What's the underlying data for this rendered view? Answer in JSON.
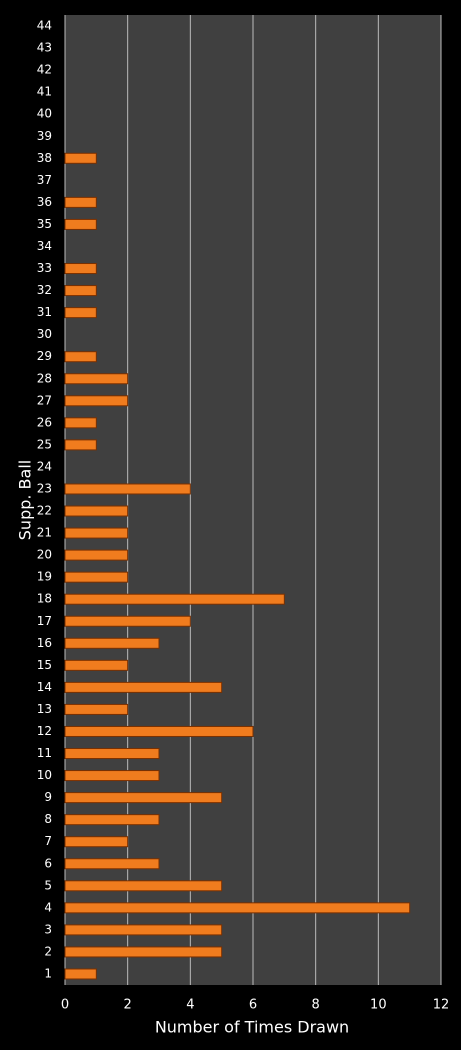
{
  "chart_data": {
    "type": "bar",
    "orientation": "horizontal",
    "x_label": "Number of Times Drawn",
    "y_label": "Supp. Ball",
    "categories": [
      "1",
      "2",
      "3",
      "4",
      "5",
      "6",
      "7",
      "8",
      "9",
      "10",
      "11",
      "12",
      "13",
      "14",
      "15",
      "16",
      "17",
      "18",
      "19",
      "20",
      "21",
      "22",
      "23",
      "24",
      "25",
      "26",
      "27",
      "28",
      "29",
      "30",
      "31",
      "32",
      "33",
      "34",
      "35",
      "36",
      "37",
      "38",
      "39",
      "40",
      "41",
      "42",
      "43",
      "44"
    ],
    "values": [
      1,
      5,
      5,
      11,
      5,
      3,
      2,
      3,
      5,
      3,
      3,
      6,
      2,
      5,
      2,
      3,
      4,
      7,
      2,
      2,
      2,
      2,
      4,
      0,
      1,
      1,
      2,
      2,
      1,
      0,
      1,
      1,
      1,
      0,
      1,
      1,
      0,
      1,
      0,
      0,
      0,
      0,
      0,
      0
    ],
    "color": "#f07c1e",
    "xlim": [
      0,
      12
    ],
    "xticks": [
      0,
      2,
      4,
      6,
      8,
      10,
      12
    ],
    "grid": true
  }
}
